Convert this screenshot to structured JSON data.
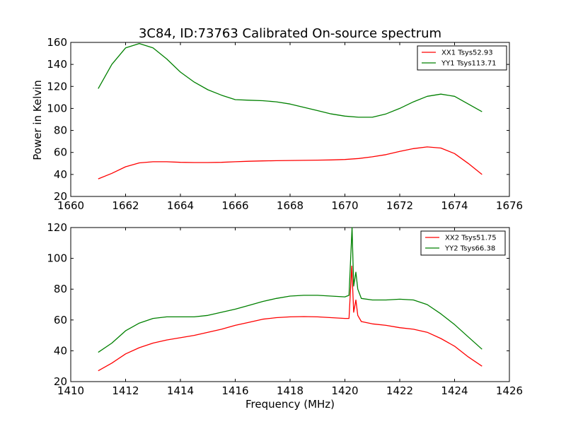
{
  "figure_title": "3C84, ID:73763 Calibrated On-source spectrum",
  "ylabel": "Power in Kelvin",
  "xlabel": "Frequency (MHz)",
  "chart_data": [
    {
      "type": "line",
      "xlim": [
        1660,
        1676
      ],
      "ylim": [
        20,
        160
      ],
      "xticks": [
        1660,
        1662,
        1664,
        1666,
        1668,
        1670,
        1672,
        1674,
        1676
      ],
      "yticks": [
        20,
        40,
        60,
        80,
        100,
        120,
        140,
        160
      ],
      "legend_position": "top-right",
      "grid": false,
      "series": [
        {
          "name": "XX1 Tsys52.93",
          "color": "#ff0000",
          "x": [
            1661.0,
            1661.5,
            1662.0,
            1662.5,
            1663.0,
            1663.5,
            1664.0,
            1664.5,
            1665.0,
            1665.5,
            1666.0,
            1666.5,
            1667.0,
            1667.5,
            1668.0,
            1668.5,
            1669.0,
            1669.5,
            1670.0,
            1670.5,
            1671.0,
            1671.5,
            1672.0,
            1672.5,
            1673.0,
            1673.5,
            1674.0,
            1674.5,
            1675.0
          ],
          "y": [
            36,
            41,
            47,
            50.5,
            51.5,
            51.5,
            51,
            50.8,
            50.8,
            51,
            51.5,
            52,
            52.3,
            52.5,
            52.7,
            52.8,
            53,
            53.2,
            53.6,
            54.5,
            56,
            58,
            61,
            63.5,
            65,
            64,
            59,
            50,
            40
          ]
        },
        {
          "name": "YY1 Tsys113.71",
          "color": "#008000",
          "x": [
            1661.0,
            1661.5,
            1662.0,
            1662.5,
            1663.0,
            1663.5,
            1664.0,
            1664.5,
            1665.0,
            1665.5,
            1666.0,
            1666.5,
            1667.0,
            1667.5,
            1668.0,
            1668.5,
            1669.0,
            1669.5,
            1670.0,
            1670.5,
            1671.0,
            1671.5,
            1672.0,
            1672.5,
            1673.0,
            1673.5,
            1674.0,
            1674.5,
            1675.0
          ],
          "y": [
            118,
            140,
            155,
            159,
            155,
            145,
            133,
            124,
            117,
            112,
            108,
            107.5,
            107,
            106,
            104,
            101,
            98,
            95,
            93,
            92,
            92,
            95,
            100,
            106,
            111,
            113,
            111,
            104,
            97
          ]
        }
      ]
    },
    {
      "type": "line",
      "xlim": [
        1410,
        1426
      ],
      "ylim": [
        20,
        120
      ],
      "xticks": [
        1410,
        1412,
        1414,
        1416,
        1418,
        1420,
        1422,
        1424,
        1426
      ],
      "yticks": [
        20,
        40,
        60,
        80,
        100,
        120
      ],
      "legend_position": "top-right",
      "grid": false,
      "series": [
        {
          "name": "XX2 Tsys51.75",
          "color": "#ff0000",
          "x": [
            1411.0,
            1411.5,
            1412.0,
            1412.5,
            1413.0,
            1413.5,
            1414.0,
            1414.5,
            1415.0,
            1415.5,
            1416.0,
            1416.5,
            1417.0,
            1417.5,
            1418.0,
            1418.5,
            1419.0,
            1419.5,
            1420.0,
            1420.15,
            1420.25,
            1420.32,
            1420.4,
            1420.47,
            1420.6,
            1421.0,
            1421.5,
            1422.0,
            1422.5,
            1423.0,
            1423.5,
            1424.0,
            1424.5,
            1425.0
          ],
          "y": [
            27,
            32,
            38,
            42,
            45,
            47,
            48.5,
            50,
            52,
            54,
            56.5,
            58.5,
            60.5,
            61.5,
            62,
            62.2,
            62,
            61.5,
            61,
            61,
            95,
            65,
            73,
            63,
            59,
            57.5,
            56.5,
            55,
            54,
            52,
            48,
            43,
            36,
            30
          ]
        },
        {
          "name": "YY2 Tsys66.38",
          "color": "#008000",
          "x": [
            1411.0,
            1411.5,
            1412.0,
            1412.5,
            1413.0,
            1413.5,
            1414.0,
            1414.5,
            1415.0,
            1415.5,
            1416.0,
            1416.5,
            1417.0,
            1417.5,
            1418.0,
            1418.5,
            1419.0,
            1419.5,
            1420.0,
            1420.15,
            1420.26,
            1420.32,
            1420.4,
            1420.47,
            1420.6,
            1421.0,
            1421.5,
            1422.0,
            1422.5,
            1423.0,
            1423.5,
            1424.0,
            1424.5,
            1425.0
          ],
          "y": [
            39,
            45,
            53,
            58,
            61,
            62,
            62,
            62,
            63,
            65,
            67,
            69.5,
            72,
            74,
            75.5,
            76,
            76,
            75.5,
            75,
            76,
            120,
            82,
            91,
            80,
            74,
            73,
            73,
            73.5,
            73,
            70,
            64,
            57,
            49,
            41
          ]
        }
      ]
    }
  ]
}
